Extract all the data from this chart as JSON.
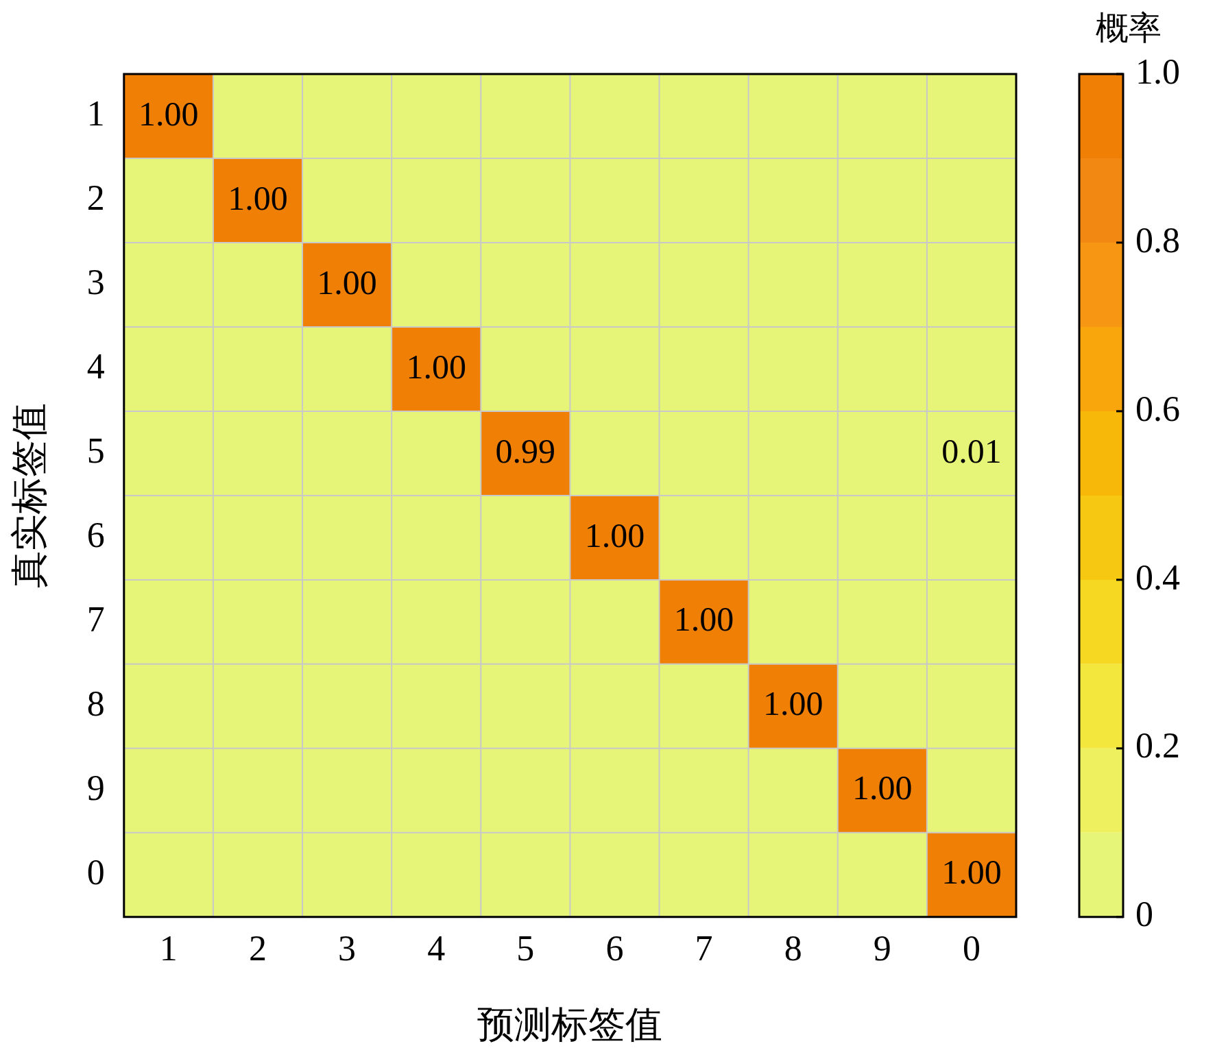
{
  "chart_data": {
    "type": "heatmap",
    "xlabel": "预测标签值",
    "ylabel": "真实标签值",
    "clabel": "概率",
    "categories": [
      "1",
      "2",
      "3",
      "4",
      "5",
      "6",
      "7",
      "8",
      "9",
      "0"
    ],
    "y_categories": [
      "1",
      "2",
      "3",
      "4",
      "5",
      "6",
      "7",
      "8",
      "9",
      "0"
    ],
    "cells": [
      [
        1,
        0,
        0,
        0,
        0,
        0,
        0,
        0,
        0,
        0
      ],
      [
        0,
        1,
        0,
        0,
        0,
        0,
        0,
        0,
        0,
        0
      ],
      [
        0,
        0,
        1,
        0,
        0,
        0,
        0,
        0,
        0,
        0
      ],
      [
        0,
        0,
        0,
        1,
        0,
        0,
        0,
        0,
        0,
        0
      ],
      [
        0,
        0,
        0,
        0,
        0.99,
        0,
        0,
        0,
        0,
        0.01
      ],
      [
        0,
        0,
        0,
        0,
        0,
        1,
        0,
        0,
        0,
        0
      ],
      [
        0,
        0,
        0,
        0,
        0,
        0,
        1,
        0,
        0,
        0
      ],
      [
        0,
        0,
        0,
        0,
        0,
        0,
        0,
        1,
        0,
        0
      ],
      [
        0,
        0,
        0,
        0,
        0,
        0,
        0,
        0,
        1,
        0
      ],
      [
        0,
        0,
        0,
        0,
        0,
        0,
        0,
        0,
        0,
        1
      ]
    ],
    "cell_labels": [
      [
        "1.00",
        null,
        null,
        null,
        null,
        null,
        null,
        null,
        null,
        null
      ],
      [
        null,
        "1.00",
        null,
        null,
        null,
        null,
        null,
        null,
        null,
        null
      ],
      [
        null,
        null,
        "1.00",
        null,
        null,
        null,
        null,
        null,
        null,
        null
      ],
      [
        null,
        null,
        null,
        "1.00",
        null,
        null,
        null,
        null,
        null,
        null
      ],
      [
        null,
        null,
        null,
        null,
        "0.99",
        null,
        null,
        null,
        null,
        "0.01"
      ],
      [
        null,
        null,
        null,
        null,
        null,
        "1.00",
        null,
        null,
        null,
        null
      ],
      [
        null,
        null,
        null,
        null,
        null,
        null,
        "1.00",
        null,
        null,
        null
      ],
      [
        null,
        null,
        null,
        null,
        null,
        null,
        null,
        "1.00",
        null,
        null
      ],
      [
        null,
        null,
        null,
        null,
        null,
        null,
        null,
        null,
        "1.00",
        null
      ],
      [
        null,
        null,
        null,
        null,
        null,
        null,
        null,
        null,
        null,
        "1.00"
      ]
    ],
    "clim": [
      0,
      1
    ],
    "cticks": [
      0,
      0.2,
      0.4,
      0.6,
      0.8,
      {
        "value": 1,
        "label": "1.0"
      }
    ]
  }
}
